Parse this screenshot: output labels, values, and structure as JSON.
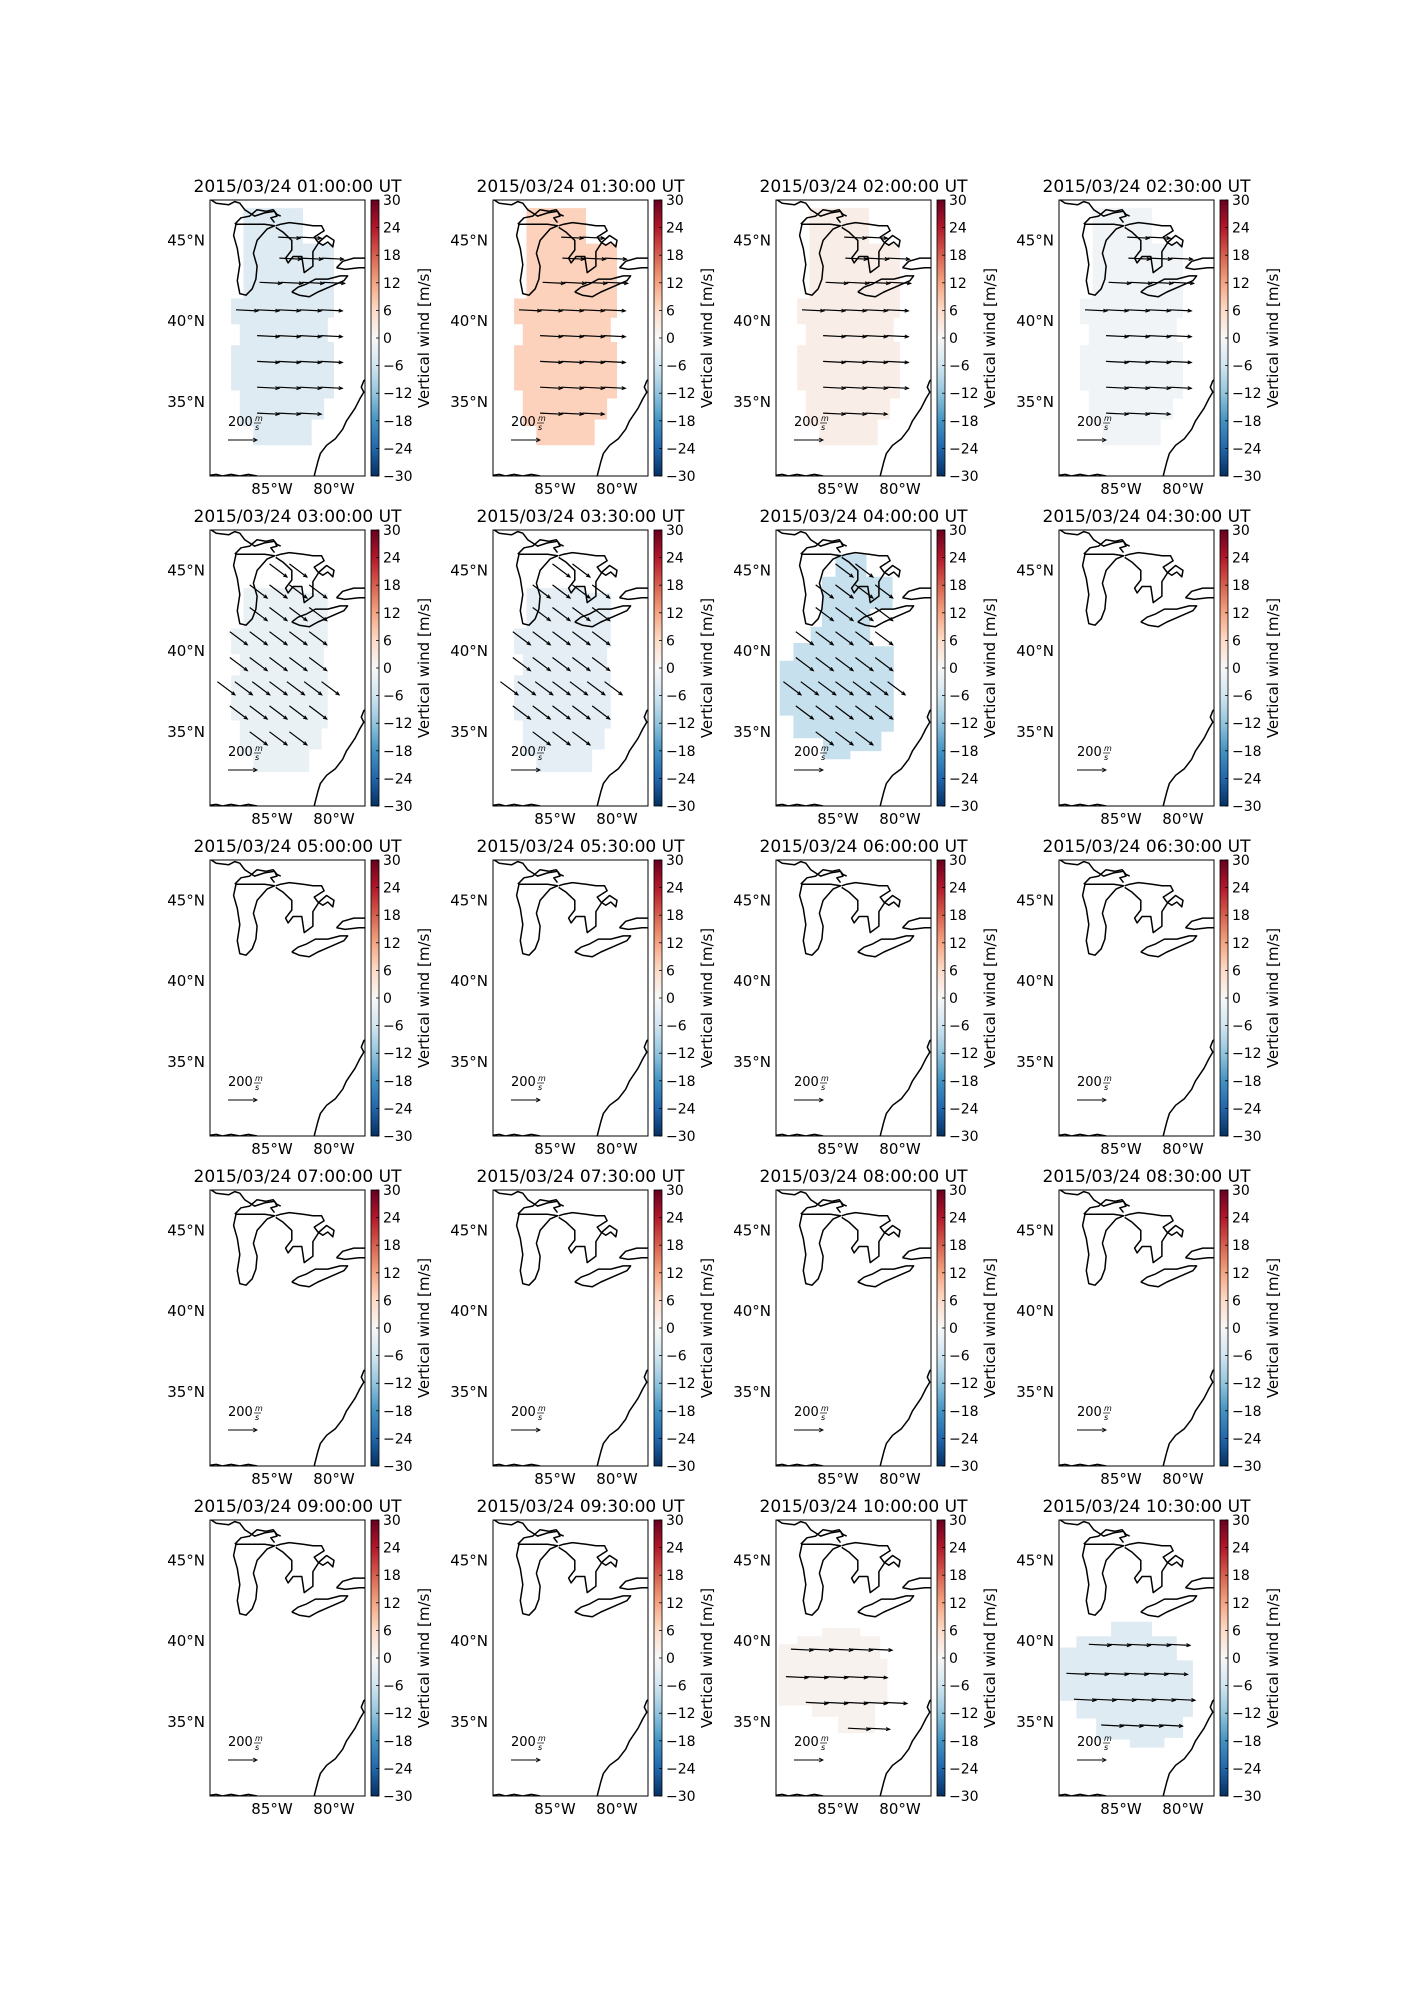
{
  "figure": {
    "colorbar_label": "Vertical wind [m/s]",
    "colorbar_ticks": [
      "30",
      "24",
      "18",
      "12",
      "6",
      "0",
      "−6",
      "−12",
      "−18",
      "−24",
      "−30"
    ],
    "lat_ticks": [
      "45°N",
      "40°N",
      "35°N"
    ],
    "lon_ticks": [
      "85°W",
      "80°W"
    ],
    "reference_arrow_label": "200",
    "reference_arrow_unit_top": "m",
    "reference_arrow_unit_bottom": "s",
    "colormap_ends": {
      "positive": "#67001f",
      "zero": "#f7f7f7",
      "negative": "#053061"
    }
  },
  "chart_data": [
    {
      "type": "heatmap",
      "title": "2015/03/24 01:00:00 UT",
      "vertical_wind": -4,
      "wind_direction": "eastward",
      "coverage": "present",
      "colorbar_range": [
        -30,
        30
      ]
    },
    {
      "type": "heatmap",
      "title": "2015/03/24 01:30:00 UT",
      "vertical_wind": 7,
      "wind_direction": "eastward",
      "coverage": "present",
      "colorbar_range": [
        -30,
        30
      ]
    },
    {
      "type": "heatmap",
      "title": "2015/03/24 02:00:00 UT",
      "vertical_wind": 2,
      "wind_direction": "eastward",
      "coverage": "present",
      "colorbar_range": [
        -30,
        30
      ]
    },
    {
      "type": "heatmap",
      "title": "2015/03/24 02:30:00 UT",
      "vertical_wind": -1,
      "wind_direction": "eastward",
      "coverage": "present",
      "colorbar_range": [
        -30,
        30
      ]
    },
    {
      "type": "heatmap",
      "title": "2015/03/24 03:00:00 UT",
      "vertical_wind": -2,
      "wind_direction": "southeastward",
      "coverage": "present",
      "colorbar_range": [
        -30,
        30
      ]
    },
    {
      "type": "heatmap",
      "title": "2015/03/24 03:30:00 UT",
      "vertical_wind": -3,
      "wind_direction": "southeastward",
      "coverage": "present",
      "colorbar_range": [
        -30,
        30
      ]
    },
    {
      "type": "heatmap",
      "title": "2015/03/24 04:00:00 UT",
      "vertical_wind": -7,
      "wind_direction": "southeastward",
      "coverage": "present",
      "colorbar_range": [
        -30,
        30
      ]
    },
    {
      "type": "heatmap",
      "title": "2015/03/24 04:30:00 UT",
      "coverage": "none",
      "colorbar_range": [
        -30,
        30
      ]
    },
    {
      "type": "heatmap",
      "title": "2015/03/24 05:00:00 UT",
      "coverage": "none",
      "colorbar_range": [
        -30,
        30
      ]
    },
    {
      "type": "heatmap",
      "title": "2015/03/24 05:30:00 UT",
      "coverage": "none",
      "colorbar_range": [
        -30,
        30
      ]
    },
    {
      "type": "heatmap",
      "title": "2015/03/24 06:00:00 UT",
      "coverage": "none",
      "colorbar_range": [
        -30,
        30
      ]
    },
    {
      "type": "heatmap",
      "title": "2015/03/24 06:30:00 UT",
      "coverage": "none",
      "colorbar_range": [
        -30,
        30
      ]
    },
    {
      "type": "heatmap",
      "title": "2015/03/24 07:00:00 UT",
      "coverage": "none",
      "colorbar_range": [
        -30,
        30
      ]
    },
    {
      "type": "heatmap",
      "title": "2015/03/24 07:30:00 UT",
      "coverage": "none",
      "colorbar_range": [
        -30,
        30
      ]
    },
    {
      "type": "heatmap",
      "title": "2015/03/24 08:00:00 UT",
      "coverage": "none",
      "colorbar_range": [
        -30,
        30
      ]
    },
    {
      "type": "heatmap",
      "title": "2015/03/24 08:30:00 UT",
      "coverage": "none",
      "colorbar_range": [
        -30,
        30
      ]
    },
    {
      "type": "heatmap",
      "title": "2015/03/24 09:00:00 UT",
      "coverage": "none",
      "colorbar_range": [
        -30,
        30
      ]
    },
    {
      "type": "heatmap",
      "title": "2015/03/24 09:30:00 UT",
      "coverage": "none",
      "colorbar_range": [
        -30,
        30
      ]
    },
    {
      "type": "heatmap",
      "title": "2015/03/24 10:00:00 UT",
      "vertical_wind": 1,
      "wind_direction": "eastward",
      "coverage": "partial-south",
      "colorbar_range": [
        -30,
        30
      ]
    },
    {
      "type": "heatmap",
      "title": "2015/03/24 10:30:00 UT",
      "vertical_wind": -4,
      "wind_direction": "eastward",
      "coverage": "partial-south",
      "colorbar_range": [
        -30,
        30
      ]
    }
  ]
}
